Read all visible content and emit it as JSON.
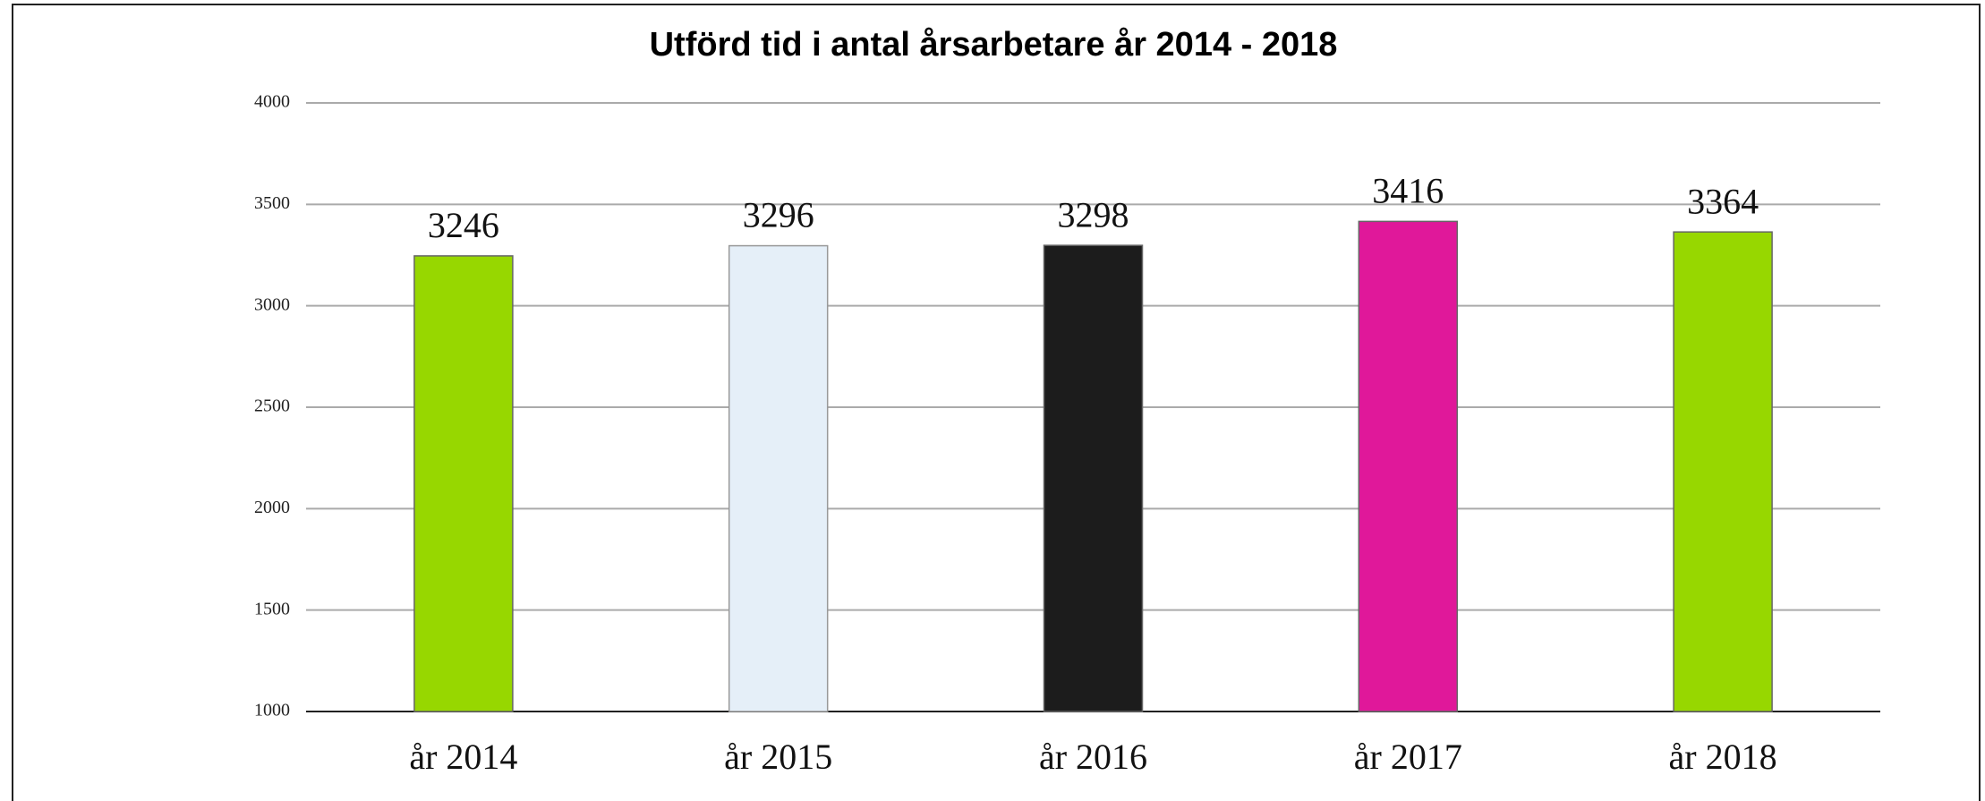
{
  "chart_data": {
    "type": "bar",
    "title": "Utförd tid i antal årsarbetare år 2014 - 2018",
    "categories": [
      "år 2014",
      "år 2015",
      "år 2016",
      "år 2017",
      "år 2018"
    ],
    "values": [
      3246,
      3296,
      3298,
      3416,
      3364
    ],
    "colors": [
      "#97d700",
      "#e5eff8",
      "#1c1c1c",
      "#e0189a",
      "#97d700"
    ],
    "ylim": [
      1000,
      4000
    ],
    "yticks": [
      1000,
      1500,
      2000,
      2500,
      3000,
      3500,
      4000
    ],
    "grid": true
  }
}
